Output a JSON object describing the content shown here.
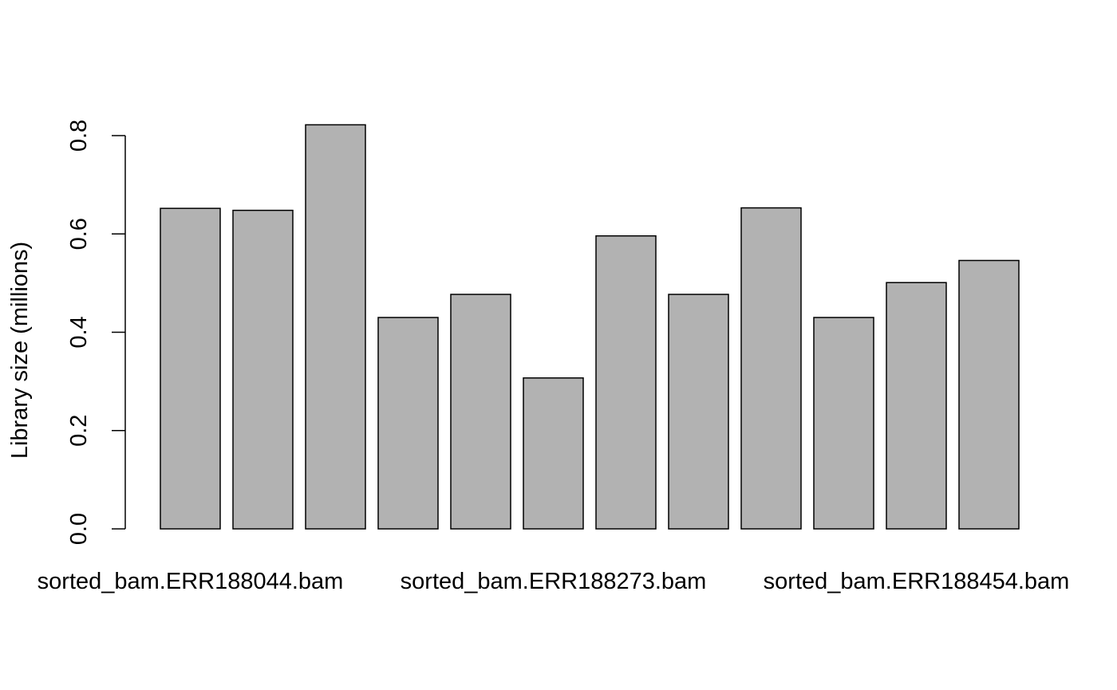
{
  "chart_data": {
    "type": "bar",
    "title": "",
    "xlabel": "",
    "ylabel": "Library size (millions)",
    "ylim": [
      0,
      0.8
    ],
    "yticks": [
      "0.0",
      "0.2",
      "0.4",
      "0.6",
      "0.8"
    ],
    "grid": false,
    "bar_color": "#b2b2b2",
    "categories": [
      "sorted_bam.ERR188044.bam",
      "",
      "",
      "",
      "",
      "sorted_bam.ERR188273.bam",
      "",
      "",
      "",
      "",
      "sorted_bam.ERR188454.bam",
      ""
    ],
    "values": [
      0.652,
      0.648,
      0.822,
      0.43,
      0.477,
      0.307,
      0.596,
      0.477,
      0.653,
      0.43,
      0.501,
      0.546
    ]
  }
}
